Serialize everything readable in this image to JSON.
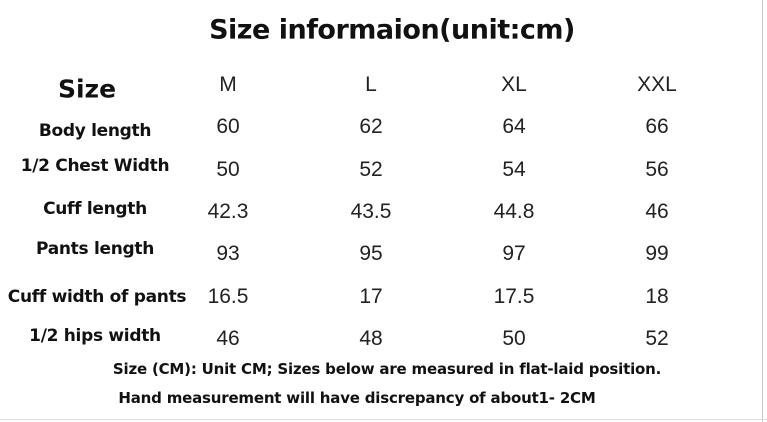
{
  "title": "Size informaion(unit:cm)",
  "table": {
    "header": [
      "Size",
      "M",
      "L",
      "XL",
      "XXL"
    ],
    "rows": [
      [
        "Body length",
        "60",
        "62",
        "64",
        "66"
      ],
      [
        "1/2 Chest Width",
        "50",
        "52",
        "54",
        "56"
      ],
      [
        "Cuff length",
        "42.3",
        "43.5",
        "44.8",
        "46"
      ],
      [
        "Pants length",
        "93",
        "95",
        "97",
        "99"
      ],
      [
        "Cuff width of pants",
        "16.5",
        "17",
        "17.5",
        "18"
      ],
      [
        "1/2 hips width",
        "46",
        "48",
        "50",
        "52"
      ]
    ]
  },
  "notes": [
    "Size (CM): Unit CM; Sizes below are measured in flat-laid position.",
    "Hand measurement will have discrepancy of about1- 2CM"
  ]
}
